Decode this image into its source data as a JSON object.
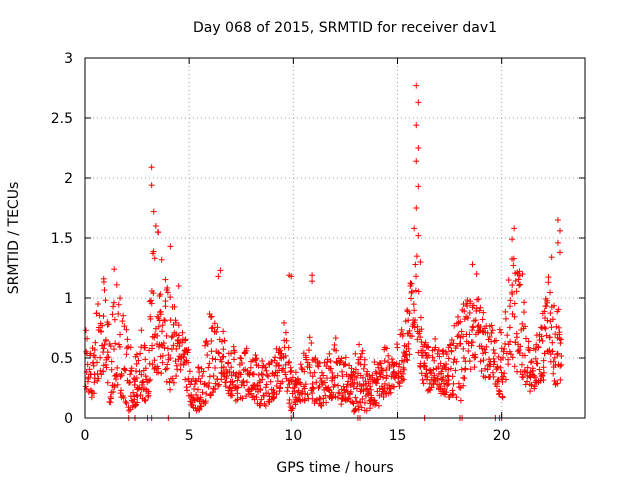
{
  "chart_data": {
    "type": "scatter",
    "title": "Day 068 of 2015, SRMTID for receiver dav1",
    "xlabel": "GPS time / hours",
    "ylabel": "SRMTID / TECUs",
    "xlim": [
      0,
      24
    ],
    "ylim": [
      0,
      3
    ],
    "xticks": [
      0,
      5,
      10,
      15,
      20
    ],
    "xtick_labels": [
      "0",
      "5",
      "10",
      "15",
      "20"
    ],
    "yticks": [
      0,
      0.5,
      1,
      1.5,
      2,
      2.5,
      3
    ],
    "ytick_labels": [
      "0",
      "0.5",
      "1",
      "1.5",
      "2",
      "2.5",
      "3"
    ],
    "grid": true,
    "marker": "+",
    "color": "#ff0000",
    "series": [
      {
        "name": "SRMTID",
        "envelope": [
          [
            0.0,
            0.2,
            0.85
          ],
          [
            0.3,
            0.15,
            0.7
          ],
          [
            0.6,
            0.3,
            1.0
          ],
          [
            0.9,
            0.4,
            1.15
          ],
          [
            1.2,
            0.1,
            0.7
          ],
          [
            1.5,
            0.3,
            1.2
          ],
          [
            1.8,
            0.15,
            0.9
          ],
          [
            2.1,
            0.05,
            0.7
          ],
          [
            2.4,
            0.1,
            0.5
          ],
          [
            2.7,
            0.15,
            0.8
          ],
          [
            3.0,
            0.1,
            0.6
          ],
          [
            3.3,
            0.4,
            1.7
          ],
          [
            3.6,
            0.35,
            1.5
          ],
          [
            3.9,
            0.3,
            1.2
          ],
          [
            4.2,
            0.2,
            1.0
          ],
          [
            4.5,
            0.35,
            0.8
          ],
          [
            4.8,
            0.3,
            0.7
          ],
          [
            5.1,
            0.1,
            0.5
          ],
          [
            5.4,
            0.05,
            0.4
          ],
          [
            5.7,
            0.1,
            0.6
          ],
          [
            6.0,
            0.15,
            0.9
          ],
          [
            6.3,
            0.25,
            0.8
          ],
          [
            6.6,
            0.3,
            0.75
          ],
          [
            6.9,
            0.2,
            0.65
          ],
          [
            7.2,
            0.15,
            0.6
          ],
          [
            7.5,
            0.1,
            0.5
          ],
          [
            7.8,
            0.2,
            0.6
          ],
          [
            8.1,
            0.15,
            0.55
          ],
          [
            8.4,
            0.1,
            0.5
          ],
          [
            8.7,
            0.1,
            0.45
          ],
          [
            9.0,
            0.15,
            0.55
          ],
          [
            9.3,
            0.2,
            0.6
          ],
          [
            9.6,
            0.3,
            0.85
          ],
          [
            9.9,
            0.05,
            0.4
          ],
          [
            10.2,
            0.1,
            0.4
          ],
          [
            10.5,
            0.1,
            0.55
          ],
          [
            10.8,
            0.15,
            0.7
          ],
          [
            11.1,
            0.1,
            0.5
          ],
          [
            11.4,
            0.1,
            0.45
          ],
          [
            11.7,
            0.15,
            0.6
          ],
          [
            12.0,
            0.15,
            0.7
          ],
          [
            12.3,
            0.1,
            0.55
          ],
          [
            12.6,
            0.15,
            0.5
          ],
          [
            12.9,
            0.05,
            0.5
          ],
          [
            13.2,
            0.05,
            0.75
          ],
          [
            13.5,
            0.05,
            0.4
          ],
          [
            13.8,
            0.1,
            0.5
          ],
          [
            14.1,
            0.1,
            0.45
          ],
          [
            14.4,
            0.15,
            0.6
          ],
          [
            14.7,
            0.2,
            0.55
          ],
          [
            15.0,
            0.25,
            0.7
          ],
          [
            15.3,
            0.3,
            0.75
          ],
          [
            15.6,
            0.55,
            1.1
          ],
          [
            15.9,
            0.6,
            1.5
          ],
          [
            16.2,
            0.3,
            0.7
          ],
          [
            16.5,
            0.2,
            0.6
          ],
          [
            16.8,
            0.3,
            0.7
          ],
          [
            17.1,
            0.2,
            0.55
          ],
          [
            17.4,
            0.15,
            0.6
          ],
          [
            17.7,
            0.2,
            0.8
          ],
          [
            18.0,
            0.1,
            0.9
          ],
          [
            18.3,
            0.3,
            1.0
          ],
          [
            18.6,
            0.4,
            1.1
          ],
          [
            18.9,
            0.4,
            1.0
          ],
          [
            19.2,
            0.3,
            0.9
          ],
          [
            19.5,
            0.35,
            0.8
          ],
          [
            19.8,
            0.2,
            0.7
          ],
          [
            20.1,
            0.15,
            0.9
          ],
          [
            20.4,
            0.5,
            1.3
          ],
          [
            20.7,
            0.4,
            1.4
          ],
          [
            21.0,
            0.3,
            1.1
          ],
          [
            21.3,
            0.2,
            0.7
          ],
          [
            21.6,
            0.25,
            0.6
          ],
          [
            21.9,
            0.3,
            0.9
          ],
          [
            22.2,
            0.3,
            1.2
          ],
          [
            22.5,
            0.25,
            1.0
          ],
          [
            22.8,
            0.3,
            0.9
          ]
        ],
        "peaks": [
          [
            3.2,
            2.09
          ],
          [
            3.2,
            1.94
          ],
          [
            3.3,
            1.72
          ],
          [
            3.4,
            1.6
          ],
          [
            3.5,
            1.55
          ],
          [
            4.1,
            1.43
          ],
          [
            4.5,
            1.1
          ],
          [
            6.5,
            1.23
          ],
          [
            6.4,
            1.18
          ],
          [
            9.8,
            1.19
          ],
          [
            9.9,
            1.18
          ],
          [
            10.9,
            1.19
          ],
          [
            10.9,
            1.14
          ],
          [
            15.9,
            2.77
          ],
          [
            16.0,
            2.63
          ],
          [
            15.9,
            2.44
          ],
          [
            16.0,
            2.25
          ],
          [
            15.9,
            2.14
          ],
          [
            16.0,
            1.93
          ],
          [
            15.9,
            1.75
          ],
          [
            15.8,
            1.58
          ],
          [
            16.0,
            1.52
          ],
          [
            16.1,
            1.3
          ],
          [
            1.4,
            1.24
          ],
          [
            0.9,
            1.16
          ],
          [
            18.8,
            1.2
          ],
          [
            18.6,
            1.28
          ],
          [
            20.6,
            1.58
          ],
          [
            20.5,
            1.49
          ],
          [
            21.0,
            1.2
          ],
          [
            22.4,
            1.34
          ],
          [
            22.7,
            1.65
          ],
          [
            22.8,
            1.56
          ],
          [
            22.7,
            1.46
          ],
          [
            22.8,
            1.38
          ]
        ],
        "zero_points": [
          [
            2.1,
            0
          ],
          [
            2.4,
            0
          ],
          [
            3.0,
            0
          ],
          [
            3.2,
            0
          ],
          [
            4.0,
            0
          ],
          [
            9.9,
            0
          ],
          [
            13.1,
            0
          ],
          [
            13.2,
            0
          ],
          [
            16.3,
            0
          ],
          [
            18.0,
            0
          ],
          [
            18.1,
            0
          ],
          [
            19.7,
            0
          ],
          [
            19.9,
            0
          ],
          [
            20.0,
            0
          ]
        ]
      }
    ]
  }
}
